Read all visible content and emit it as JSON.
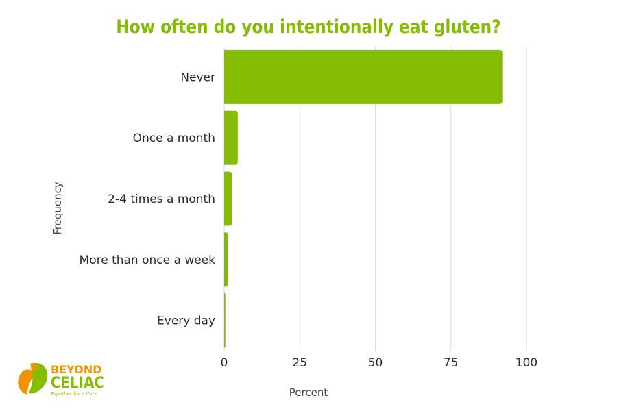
{
  "chart_data": {
    "type": "bar",
    "orientation": "horizontal",
    "title": "How often do you intentionally eat gluten?",
    "xlabel": "Percent",
    "ylabel": "Frequency",
    "categories": [
      "Never",
      "Once a month",
      "2-4 times a month",
      "More than once a week",
      "Every day"
    ],
    "values": [
      92,
      4.5,
      2.5,
      1.2,
      0.4
    ],
    "xlim": [
      0,
      100
    ],
    "xticks": [
      0,
      25,
      50,
      75,
      100
    ],
    "grid": "vertical",
    "legend": "none"
  },
  "colors": {
    "bar": "#84BD00",
    "title": "#84BD00",
    "grid": "#d9d9d9",
    "logo_orange": "#F39200",
    "logo_green": "#84BD00"
  },
  "logo": {
    "line1": "BEYOND",
    "line2": "CELIAC",
    "tagline": "Together for a Cure",
    "icon": "beyond-celiac-leaf-icon"
  }
}
